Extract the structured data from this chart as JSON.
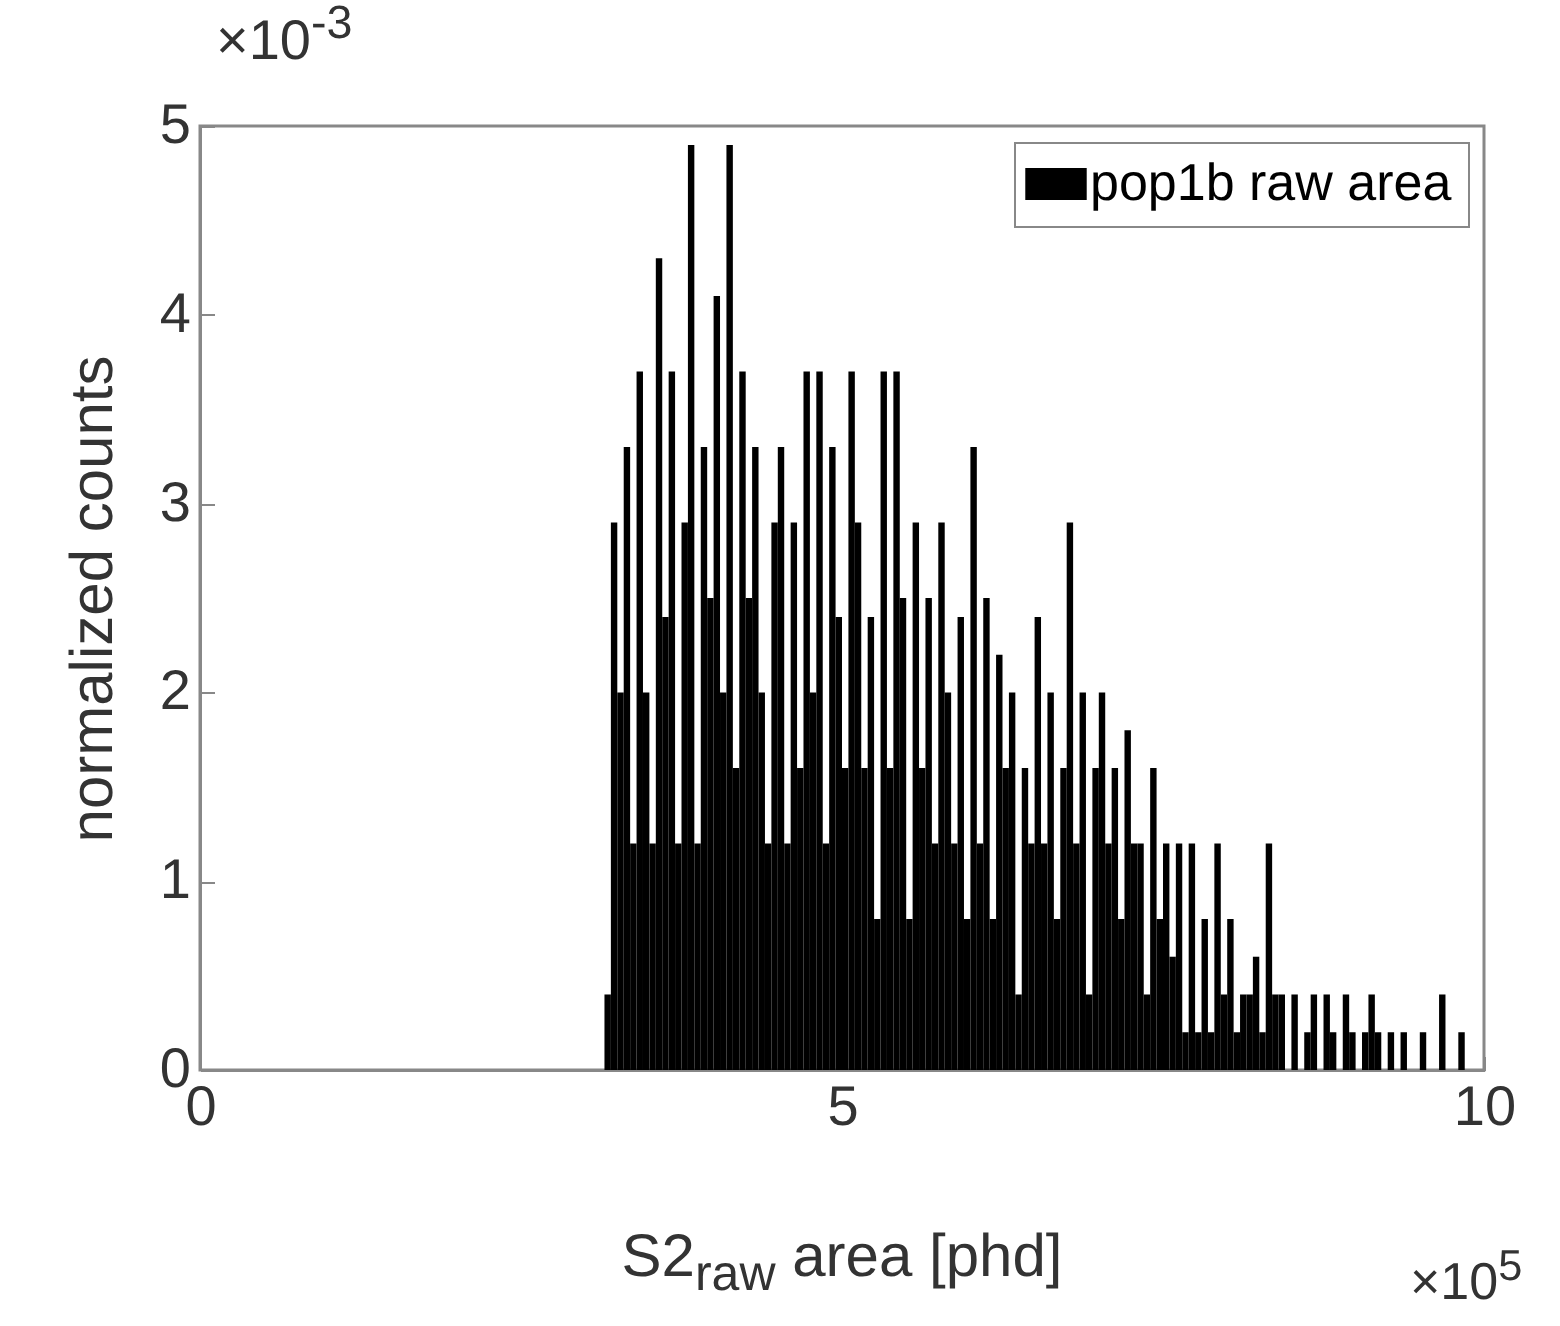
{
  "chart_data": {
    "type": "histogram",
    "xlabel": "S2$_{raw}$ area [phd]",
    "ylabel": "normalized counts",
    "xlim": [
      0,
      10
    ],
    "xticks": [
      0,
      5,
      10
    ],
    "ylim": [
      0,
      5
    ],
    "yticks": [
      0,
      1,
      2,
      3,
      4,
      5
    ],
    "annotations": [
      "×10$^{-3}$",
      "×10$^{5}$"
    ],
    "legend": "top right",
    "grid": false,
    "bins": [
      3.15,
      3.2,
      3.25,
      3.3,
      3.35,
      3.4,
      3.45,
      3.5,
      3.55,
      3.6,
      3.65,
      3.7,
      3.75,
      3.8,
      3.85,
      3.9,
      3.95,
      4.0,
      4.05,
      4.1,
      4.15,
      4.2,
      4.25,
      4.3,
      4.35,
      4.4,
      4.45,
      4.5,
      4.55,
      4.6,
      4.65,
      4.7,
      4.75,
      4.8,
      4.85,
      4.9,
      4.95,
      5.0,
      5.05,
      5.1,
      5.15,
      5.2,
      5.25,
      5.3,
      5.35,
      5.4,
      5.45,
      5.5,
      5.55,
      5.6,
      5.65,
      5.7,
      5.75,
      5.8,
      5.85,
      5.9,
      5.95,
      6.0,
      6.05,
      6.1,
      6.15,
      6.2,
      6.25,
      6.3,
      6.35,
      6.4,
      6.45,
      6.5,
      6.55,
      6.6,
      6.65,
      6.7,
      6.75,
      6.8,
      6.85,
      6.9,
      6.95,
      7.0,
      7.05,
      7.1,
      7.15,
      7.2,
      7.25,
      7.3,
      7.35,
      7.4,
      7.45,
      7.5,
      7.55,
      7.6,
      7.65,
      7.7,
      7.75,
      7.8,
      7.85,
      7.9,
      7.95,
      8.0,
      8.05,
      8.1,
      8.15,
      8.2,
      8.25,
      8.3,
      8.35,
      8.4,
      8.45,
      8.5,
      8.55,
      8.6,
      8.65,
      8.7,
      8.75,
      8.8,
      8.85,
      8.9,
      8.95,
      9.0,
      9.05,
      9.1,
      9.15,
      9.2,
      9.25,
      9.3,
      9.35,
      9.4,
      9.45,
      9.5,
      9.55,
      9.6,
      9.65,
      9.7,
      9.75,
      9.8,
      9.85,
      9.9,
      9.95
    ],
    "series": [
      {
        "name": "pop1b raw area",
        "color": "#000000",
        "values": [
          0.4,
          2.9,
          2.0,
          3.3,
          1.2,
          3.7,
          2.0,
          1.2,
          4.3,
          2.4,
          3.7,
          1.2,
          2.9,
          4.9,
          1.2,
          3.3,
          2.5,
          4.1,
          2.0,
          4.9,
          1.6,
          3.7,
          2.5,
          3.3,
          2.0,
          1.2,
          2.9,
          3.3,
          1.2,
          2.9,
          1.6,
          3.7,
          2.0,
          3.7,
          1.2,
          3.3,
          2.4,
          1.6,
          3.7,
          2.9,
          1.6,
          2.4,
          0.8,
          3.7,
          1.6,
          3.7,
          2.5,
          0.8,
          2.9,
          1.6,
          2.5,
          1.2,
          2.9,
          2.0,
          1.2,
          2.4,
          0.8,
          3.3,
          1.2,
          2.5,
          0.8,
          2.2,
          1.6,
          2.0,
          0.4,
          1.6,
          1.2,
          2.4,
          1.2,
          2.0,
          0.8,
          1.6,
          2.9,
          1.2,
          2.0,
          0.4,
          1.6,
          2.0,
          1.2,
          1.6,
          0.8,
          1.8,
          1.2,
          1.2,
          0.4,
          1.6,
          0.8,
          1.2,
          0.6,
          1.2,
          0.2,
          1.2,
          0.2,
          0.8,
          0.2,
          1.2,
          0.4,
          0.8,
          0.2,
          0.4,
          0.4,
          0.6,
          0.2,
          1.2,
          0.4,
          0.4,
          0.0,
          0.4,
          0.0,
          0.2,
          0.4,
          0.0,
          0.4,
          0.2,
          0.0,
          0.4,
          0.2,
          0.0,
          0.2,
          0.4,
          0.2,
          0.0,
          0.2,
          0.0,
          0.2,
          0.0,
          0.0,
          0.2,
          0.0,
          0.0,
          0.4,
          0.0,
          0.0,
          0.2,
          0.0,
          0.0
        ]
      }
    ]
  }
}
